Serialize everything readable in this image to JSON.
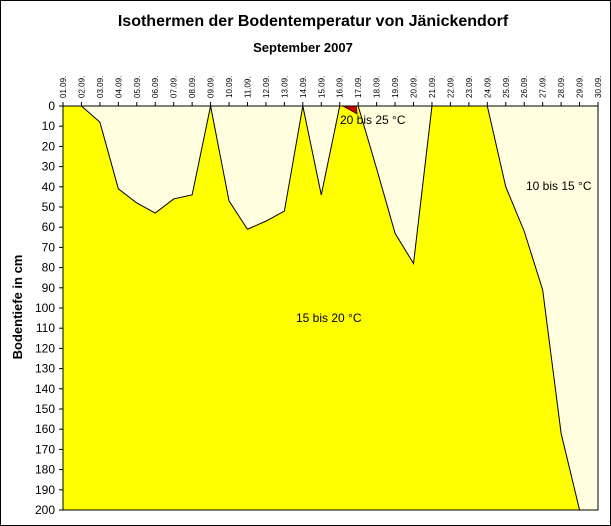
{
  "chart_data": {
    "type": "area",
    "title": "Isothermen der Bodentemperatur von Jänickendorf",
    "subtitle": "September 2007",
    "ylabel": "Bodentiefe in cm",
    "xlabel": "",
    "categories": [
      "01.09.",
      "02.09.",
      "03.09.",
      "04.09.",
      "05.09.",
      "06.09.",
      "07.09.",
      "08.09.",
      "09.09.",
      "10.09.",
      "11.09.",
      "12.09.",
      "13.09.",
      "14.09.",
      "15.09.",
      "16.09.",
      "17.09.",
      "18.09.",
      "19.09.",
      "20.09.",
      "21.09.",
      "22.09.",
      "23.09.",
      "24.09.",
      "25.09.",
      "26.09.",
      "27.09.",
      "28.09.",
      "29.09.",
      "30.09."
    ],
    "ylim": [
      0,
      200
    ],
    "y_reversed": true,
    "y_ticks": [
      0,
      10,
      20,
      30,
      40,
      50,
      60,
      70,
      80,
      90,
      100,
      110,
      120,
      130,
      140,
      150,
      160,
      170,
      180,
      190,
      200
    ],
    "isotherm_15": [
      0,
      0,
      8,
      41,
      48,
      53,
      46,
      44,
      0,
      47,
      61,
      57,
      52,
      0,
      44,
      0,
      0,
      31,
      63,
      78,
      0,
      0,
      0,
      0,
      40,
      62,
      91,
      162,
      200,
      200
    ],
    "isotherm_20_region": {
      "x": [
        15,
        16
      ],
      "depth": [
        0,
        2
      ]
    },
    "colors": {
      "background": "#ffffff",
      "plot_area": "#ffffe0",
      "band_15_20": "#ffff00",
      "band_20_25": "#cc0000",
      "line": "#000000"
    },
    "region_labels": {
      "r1": "10 bis 15 °C",
      "r2": "15 bis 20 °C",
      "r3": "20 bis 25 °C"
    }
  }
}
